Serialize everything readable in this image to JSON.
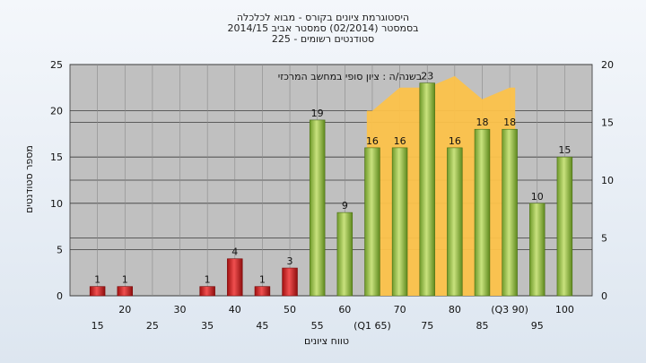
{
  "title_lines": [
    "היסטוגרמת ציונים בקורס - מבוא לכלכלה",
    "בסמסטר  (02/2014)  סמסטר אביב 2014/15",
    "סטודנטים רשומים - 225"
  ],
  "chart_data": {
    "type": "bar",
    "xlabel": "טווח ציונים",
    "ylabel": "מספר סטודנטים",
    "ylim": [
      0,
      25
    ],
    "y_ticks": [
      0,
      5,
      10,
      15,
      20,
      25
    ],
    "y2lim": [
      0,
      20
    ],
    "y2_ticks": [
      0,
      5,
      10,
      15,
      20
    ],
    "categories": [
      "15",
      "20",
      "25",
      "30",
      "35",
      "40",
      "45",
      "50",
      "55",
      "60",
      "(Q1 65)",
      "70",
      "75",
      "80",
      "85",
      "(Q3 90)",
      "95",
      "100"
    ],
    "values": [
      1,
      1,
      0,
      0,
      1,
      4,
      1,
      3,
      19,
      9,
      16,
      16,
      23,
      16,
      18,
      18,
      10,
      15
    ],
    "data_labels": [
      "1",
      "1",
      "",
      "",
      "1",
      "4",
      "1",
      "3",
      "19",
      "9",
      "16",
      "16",
      "23",
      "16",
      "18",
      "18",
      "10",
      "15"
    ],
    "failing_until_index": 7,
    "comparison": {
      "label": "בשנה/ה : ציון סופי במחשב המרכזי",
      "values": [
        0,
        0,
        0,
        0,
        0,
        0,
        0,
        0,
        0,
        0,
        16,
        18,
        18,
        19,
        17,
        18,
        0,
        0
      ]
    },
    "colors": {
      "fail": "#dd2a2a",
      "pass": "#9ac24a",
      "comparison_area": "#fcc24a",
      "plot_bg": "#c0c0c0"
    },
    "grid": true
  }
}
